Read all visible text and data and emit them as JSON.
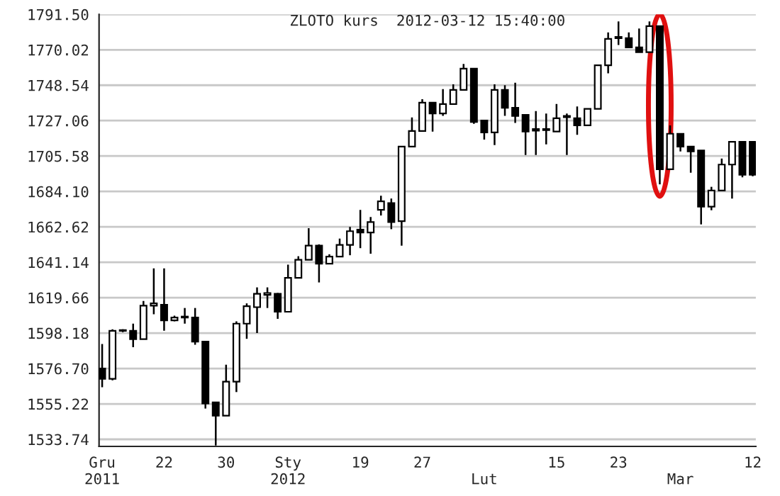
{
  "chart_data": {
    "type": "candlestick",
    "title": "ZLOTO kurs  2012-03-12 15:40:00",
    "categories": [
      "Gru\n2011",
      null,
      null,
      null,
      null,
      null,
      "22",
      null,
      null,
      null,
      null,
      null,
      "30",
      null,
      null,
      null,
      null,
      null,
      "Sty\n2012",
      null,
      null,
      null,
      null,
      null,
      null,
      "19",
      null,
      null,
      null,
      null,
      null,
      "27",
      null,
      null,
      null,
      null,
      null,
      "\nLut",
      null,
      null,
      null,
      null,
      null,
      null,
      "15",
      null,
      null,
      null,
      null,
      null,
      "23",
      null,
      null,
      null,
      null,
      null,
      "\nMar",
      null,
      null,
      null,
      null,
      null,
      null,
      "12"
    ],
    "ohlc": [
      [
        1576.7,
        1591.6,
        1565.3,
        1570.4
      ],
      [
        1570.4,
        1600.5,
        1569.5,
        1599.6
      ],
      [
        1599.6,
        1600.5,
        1598.8,
        1599.6
      ],
      [
        1599.6,
        1603.9,
        1589.6,
        1594.5
      ],
      [
        1594.5,
        1617.7,
        1594.5,
        1614.8
      ],
      [
        1614.8,
        1637.4,
        1609.6,
        1616.2
      ],
      [
        1615.4,
        1637.4,
        1599.6,
        1605.9
      ],
      [
        1605.9,
        1608.7,
        1605.3,
        1607.6
      ],
      [
        1607.6,
        1613.4,
        1603.9,
        1608.2
      ],
      [
        1607.6,
        1613.4,
        1591.1,
        1593.0
      ],
      [
        1593.0,
        1593.0,
        1552.4,
        1555.5
      ],
      [
        1556.1,
        1556.1,
        1530.0,
        1548.1
      ],
      [
        1548.1,
        1579.0,
        1548.1,
        1568.7
      ],
      [
        1568.7,
        1605.3,
        1562.4,
        1603.9
      ],
      [
        1603.9,
        1616.2,
        1594.7,
        1614.5
      ],
      [
        1613.9,
        1625.9,
        1598.2,
        1622.0
      ],
      [
        1621.4,
        1625.9,
        1613.4,
        1622.5
      ],
      [
        1622.0,
        1622.5,
        1606.8,
        1611.1
      ],
      [
        1611.1,
        1639.7,
        1611.1,
        1631.7
      ],
      [
        1631.7,
        1644.8,
        1631.7,
        1642.6
      ],
      [
        1642.6,
        1661.8,
        1642.6,
        1651.2
      ],
      [
        1651.2,
        1652.0,
        1628.9,
        1640.3
      ],
      [
        1640.3,
        1646.0,
        1640.3,
        1644.6
      ],
      [
        1644.6,
        1655.5,
        1644.6,
        1651.7
      ],
      [
        1651.7,
        1662.6,
        1645.4,
        1660.0
      ],
      [
        1660.9,
        1672.9,
        1649.7,
        1659.2
      ],
      [
        1659.2,
        1668.6,
        1646.3,
        1665.5
      ],
      [
        1672.9,
        1681.5,
        1669.5,
        1678.1
      ],
      [
        1677.0,
        1679.8,
        1661.2,
        1665.5
      ],
      [
        1666.1,
        1711.3,
        1651.2,
        1711.3
      ],
      [
        1711.3,
        1729.0,
        1711.3,
        1720.8
      ],
      [
        1720.8,
        1740.0,
        1720.8,
        1738.0
      ],
      [
        1738.0,
        1738.0,
        1720.4,
        1731.4
      ],
      [
        1731.4,
        1746.2,
        1729.9,
        1737.1
      ],
      [
        1737.1,
        1749.1,
        1737.1,
        1745.7
      ],
      [
        1745.7,
        1761.4,
        1745.7,
        1758.6
      ],
      [
        1758.6,
        1758.6,
        1725.1,
        1726.2
      ],
      [
        1727.1,
        1727.1,
        1715.6,
        1719.9
      ],
      [
        1719.9,
        1749.1,
        1712.2,
        1745.7
      ],
      [
        1745.7,
        1748.5,
        1729.9,
        1734.8
      ],
      [
        1734.8,
        1750.0,
        1725.6,
        1729.9
      ],
      [
        1730.5,
        1730.5,
        1706.2,
        1720.4
      ],
      [
        1721.9,
        1732.8,
        1706.2,
        1721.0
      ],
      [
        1721.3,
        1731.4,
        1712.7,
        1721.9
      ],
      [
        1720.4,
        1737.1,
        1720.4,
        1728.5
      ],
      [
        1729.1,
        1731.4,
        1706.2,
        1729.9
      ],
      [
        1728.5,
        1735.6,
        1718.5,
        1724.2
      ],
      [
        1724.2,
        1734.2,
        1724.2,
        1734.2
      ],
      [
        1734.2,
        1760.6,
        1734.2,
        1760.6
      ],
      [
        1760.6,
        1780.6,
        1755.7,
        1776.6
      ],
      [
        1777.1,
        1787.2,
        1772.9,
        1777.8
      ],
      [
        1777.1,
        1780.6,
        1771.5,
        1771.5
      ],
      [
        1771.5,
        1782.9,
        1768.6,
        1768.6
      ],
      [
        1768.6,
        1787.2,
        1768.6,
        1784.4
      ],
      [
        1784.4,
        1784.4,
        1688.4,
        1697.6
      ],
      [
        1697.6,
        1724.2,
        1697.6,
        1719.1
      ],
      [
        1719.1,
        1719.1,
        1708.4,
        1711.3
      ],
      [
        1711.3,
        1711.3,
        1695.5,
        1708.4
      ],
      [
        1709.0,
        1709.0,
        1664.1,
        1674.9
      ],
      [
        1674.9,
        1686.9,
        1672.7,
        1684.7
      ],
      [
        1684.7,
        1704.1,
        1684.7,
        1700.4
      ],
      [
        1700.4,
        1714.2,
        1679.8,
        1714.2
      ],
      [
        1714.2,
        1714.2,
        1692.7,
        1694.2
      ],
      [
        1714.2,
        1714.2,
        1693.3,
        1694.2
      ]
    ],
    "ylim": [
      1529.44,
      1791.5
    ],
    "yticks": [
      {
        "value": 1791.5,
        "label": "1791.50"
      },
      {
        "value": 1770.02,
        "label": "1770.02"
      },
      {
        "value": 1748.54,
        "label": "1748.54"
      },
      {
        "value": 1727.06,
        "label": "1727.06"
      },
      {
        "value": 1705.58,
        "label": "1705.58"
      },
      {
        "value": 1684.1,
        "label": "1684.10"
      },
      {
        "value": 1662.62,
        "label": "1662.62"
      },
      {
        "value": 1641.14,
        "label": "1641.14"
      },
      {
        "value": 1619.66,
        "label": "1619.66"
      },
      {
        "value": 1598.18,
        "label": "1598.18"
      },
      {
        "value": 1576.7,
        "label": "1576.70"
      },
      {
        "value": 1555.22,
        "label": "1555.22"
      },
      {
        "value": 1533.74,
        "label": "1533.74"
      }
    ],
    "grid": "y"
  }
}
